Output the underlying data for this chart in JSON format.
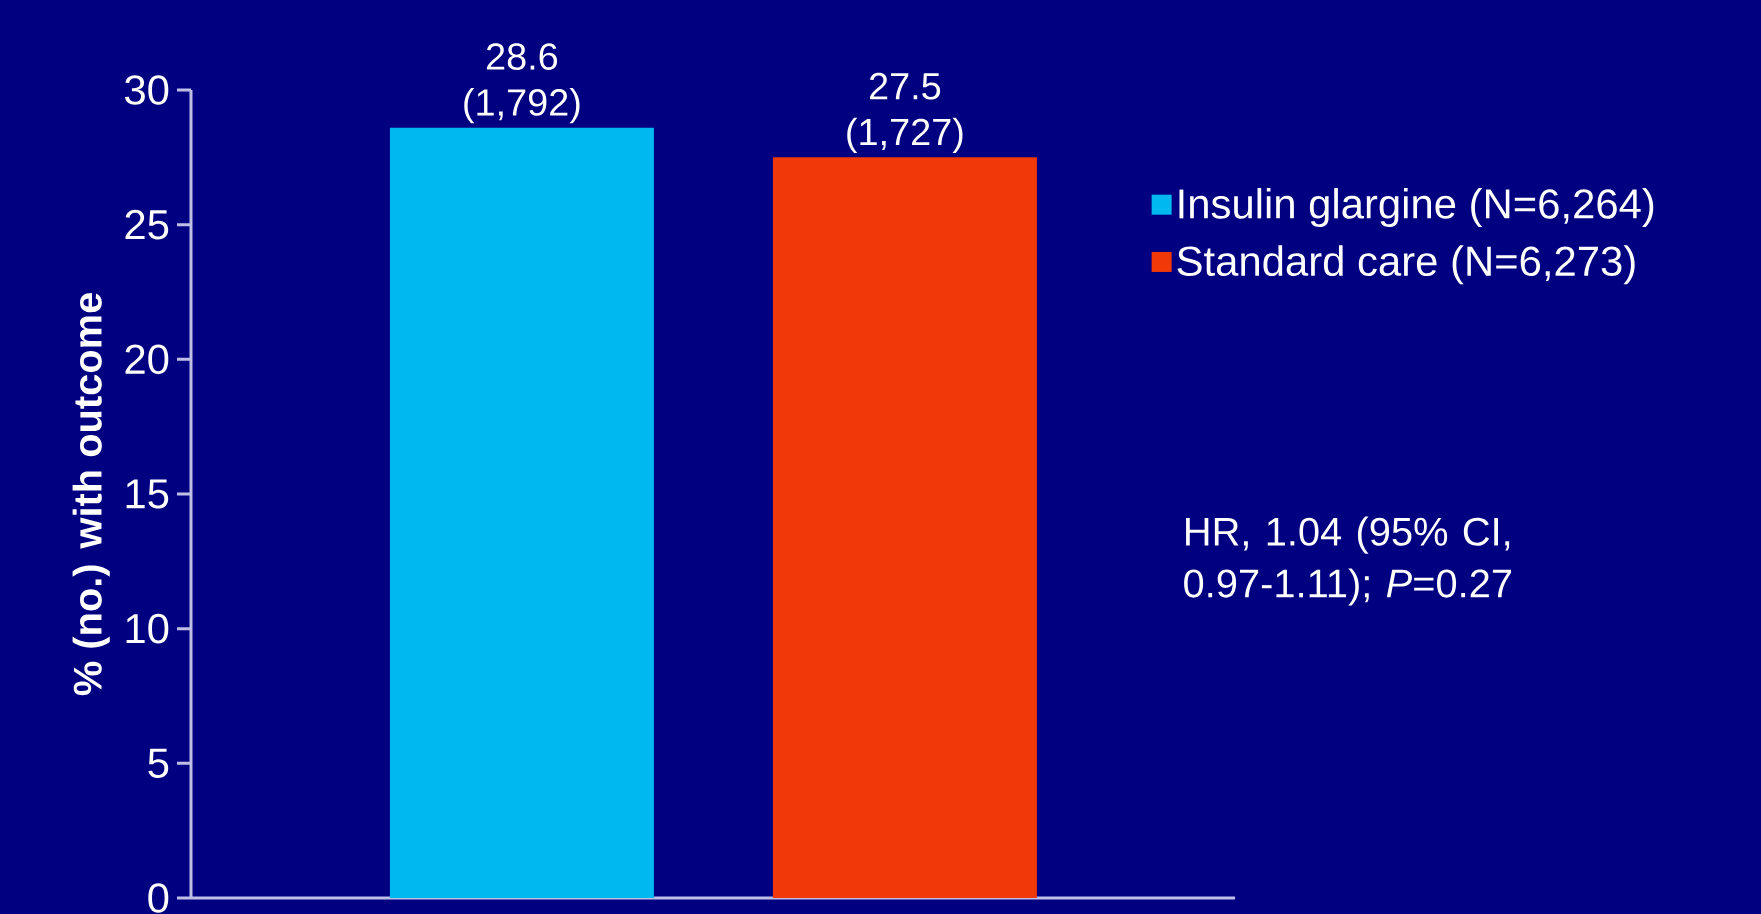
{
  "chart_data": {
    "type": "bar",
    "ylabel": "% (no.) with outcome",
    "categories": [
      null,
      null
    ],
    "series": [
      {
        "name": "Insulin glargine (N=6,264)",
        "color": "#00b8f0",
        "values": [
          28.6,
          null
        ],
        "value_labels": [
          "28.6 (1,792)",
          null
        ]
      },
      {
        "name": "Standard care (N=6,273)",
        "color": "#f03808",
        "values": [
          null,
          27.5
        ],
        "value_labels": [
          null,
          "27.5 (1,727)"
        ]
      }
    ],
    "ylim": [
      0,
      30
    ],
    "yticks": [
      0,
      5,
      10,
      15,
      20,
      25,
      30
    ],
    "legend": "right",
    "annotations": [
      "HR, 1.04 (95% CI, 0.97-1.11); *P*=0.27"
    ]
  }
}
